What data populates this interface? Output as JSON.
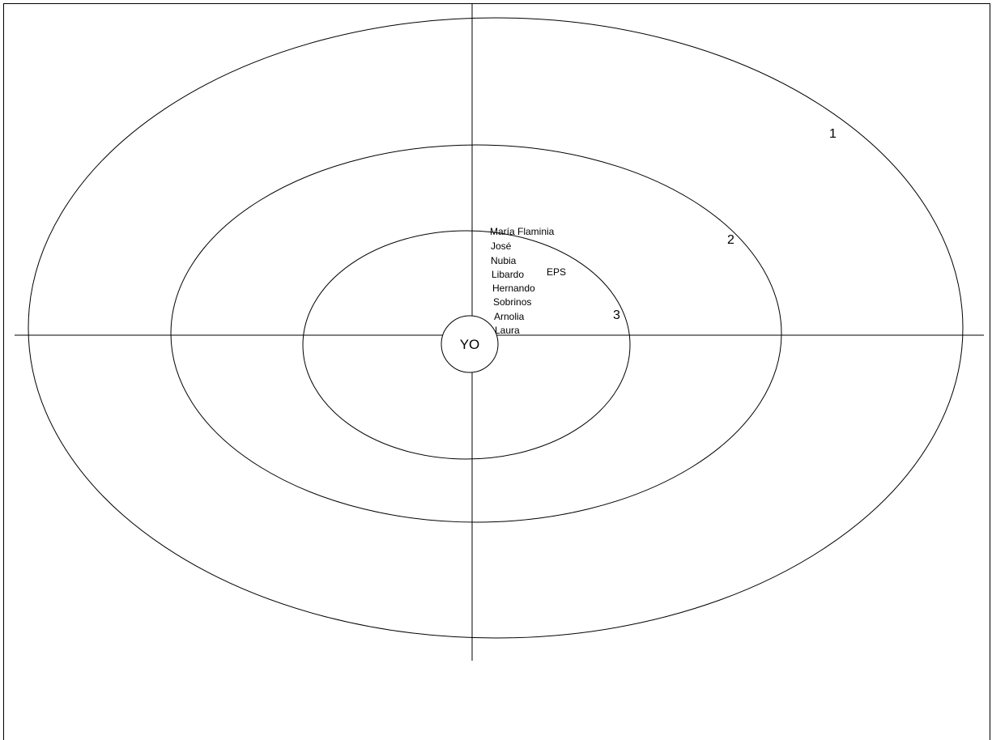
{
  "diagram": {
    "type": "ecomap",
    "center_label": "YO",
    "ring_labels": [
      "1",
      "2",
      "3"
    ],
    "names": [
      "María Flaminia",
      "José",
      "Nubia",
      "Libardo",
      "Hernando",
      "Sobrinos",
      "Arnolia",
      "Laura"
    ],
    "extra_label": "EPS"
  }
}
